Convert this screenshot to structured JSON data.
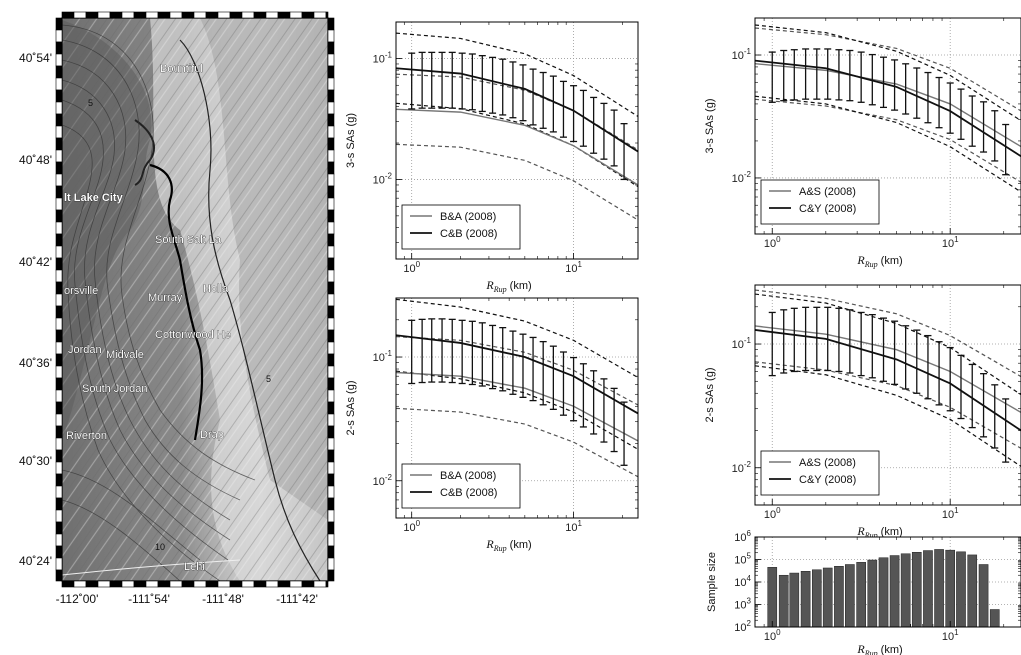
{
  "map": {
    "lat_labels": [
      "40˚54'",
      "40˚48'",
      "40˚42'",
      "40˚36'",
      "40˚30'",
      "40˚24'"
    ],
    "lon_labels": [
      "-112˚00'",
      "-111˚54'",
      "-111˚48'",
      "-111˚42'"
    ],
    "place_labels": [
      "Bountiful",
      "lt Lake City",
      "South Salt La",
      "orsville",
      "Murray",
      "Holla",
      "Cottonwood He",
      "Jordan",
      "Midvale",
      "South Jordan",
      "Riverton",
      "Drap",
      "Lehi"
    ],
    "contour_labels": [
      "5",
      "10",
      "5"
    ]
  },
  "chart_data": [
    {
      "type": "line",
      "id": "left-top",
      "ylabel": "3-s SAs (g)",
      "xlabel_main": "R",
      "xlabel_sub": "Rup",
      "xlabel_unit": " (km)",
      "xscale": "log",
      "yscale": "log",
      "xlim": [
        0.8,
        25
      ],
      "ylim": [
        0.0022,
        0.2
      ],
      "xticks": [
        {
          "main": "10",
          "sup": "0"
        },
        {
          "main": "10",
          "sup": "1"
        }
      ],
      "yticks": [
        {
          "main": "10",
          "sup": "-1"
        },
        {
          "main": "10",
          "sup": "-2"
        }
      ],
      "grid": true,
      "legend": "lower-left",
      "series": [
        {
          "name": "B&A (2008)",
          "x": [
            0.8,
            2,
            5,
            10,
            25
          ],
          "y": [
            0.038,
            0.036,
            0.028,
            0.019,
            0.009
          ]
        },
        {
          "name": "C&B (2008)",
          "x": [
            0.8,
            2,
            5,
            10,
            25
          ],
          "y": [
            0.083,
            0.075,
            0.056,
            0.037,
            0.017
          ]
        }
      ],
      "errorbars": {
        "x": [
          1.0,
          1.16,
          1.33,
          1.54,
          1.78,
          2.05,
          2.37,
          2.73,
          3.16,
          3.65,
          4.22,
          4.87,
          5.62,
          6.49,
          7.5,
          8.66,
          10.0,
          11.5,
          13.3,
          15.4,
          17.8,
          20.5
        ],
        "ymid": [
          0.065,
          0.066,
          0.066,
          0.066,
          0.066,
          0.065,
          0.064,
          0.062,
          0.06,
          0.058,
          0.055,
          0.052,
          0.048,
          0.045,
          0.042,
          0.038,
          0.035,
          0.032,
          0.028,
          0.025,
          0.022,
          0.017
        ],
        "yerr_factor": 1.7
      }
    },
    {
      "type": "line",
      "id": "left-bottom",
      "ylabel": "2-s SAs (g)",
      "xlabel_main": "R",
      "xlabel_sub": "Rup",
      "xlabel_unit": " (km)",
      "xscale": "log",
      "yscale": "log",
      "xlim": [
        0.8,
        25
      ],
      "ylim": [
        0.005,
        0.3
      ],
      "xticks": [
        {
          "main": "10",
          "sup": "0"
        },
        {
          "main": "10",
          "sup": "1"
        }
      ],
      "yticks": [
        {
          "main": "10",
          "sup": "-1"
        },
        {
          "main": "10",
          "sup": "-2"
        }
      ],
      "grid": true,
      "legend": "lower-left",
      "series": [
        {
          "name": "B&A (2008)",
          "x": [
            0.8,
            2,
            5,
            10,
            25
          ],
          "y": [
            0.075,
            0.07,
            0.056,
            0.04,
            0.021
          ]
        },
        {
          "name": "C&B (2008)",
          "x": [
            0.8,
            2,
            5,
            10,
            25
          ],
          "y": [
            0.15,
            0.13,
            0.1,
            0.07,
            0.035
          ]
        }
      ],
      "errorbars": {
        "x": [
          1.0,
          1.16,
          1.33,
          1.54,
          1.78,
          2.05,
          2.37,
          2.73,
          3.16,
          3.65,
          4.22,
          4.87,
          5.62,
          6.49,
          7.5,
          8.66,
          10.0,
          11.5,
          13.3,
          15.4,
          17.8,
          20.5
        ],
        "ymid": [
          0.11,
          0.112,
          0.113,
          0.113,
          0.112,
          0.11,
          0.108,
          0.105,
          0.1,
          0.096,
          0.09,
          0.085,
          0.08,
          0.074,
          0.068,
          0.061,
          0.055,
          0.049,
          0.043,
          0.037,
          0.031,
          0.024
        ],
        "yerr_factor": 1.8
      }
    },
    {
      "type": "line",
      "id": "right-top",
      "ylabel": "3-s SAs (g)",
      "xlabel_main": "R",
      "xlabel_sub": "Rup",
      "xlabel_unit": " (km)",
      "xscale": "log",
      "yscale": "log",
      "xlim": [
        0.8,
        25
      ],
      "ylim": [
        0.0035,
        0.2
      ],
      "xticks": [
        {
          "main": "10",
          "sup": "0"
        },
        {
          "main": "10",
          "sup": "1"
        }
      ],
      "yticks": [
        {
          "main": "10",
          "sup": "-1"
        },
        {
          "main": "10",
          "sup": "-2"
        }
      ],
      "grid": true,
      "legend": "lower-left",
      "series": [
        {
          "name": "A&S (2008)",
          "x": [
            0.8,
            2,
            5,
            10,
            25
          ],
          "y": [
            0.085,
            0.075,
            0.058,
            0.04,
            0.018
          ]
        },
        {
          "name": "C&Y (2008)",
          "x": [
            0.8,
            2,
            5,
            10,
            25
          ],
          "y": [
            0.09,
            0.078,
            0.055,
            0.035,
            0.015
          ]
        }
      ],
      "errorbars": {
        "x": [
          1.0,
          1.16,
          1.33,
          1.54,
          1.78,
          2.05,
          2.37,
          2.73,
          3.16,
          3.65,
          4.22,
          4.87,
          5.62,
          6.49,
          7.5,
          8.66,
          10.0,
          11.5,
          13.3,
          15.4,
          17.8,
          20.5
        ],
        "ymid": [
          0.066,
          0.068,
          0.069,
          0.07,
          0.07,
          0.07,
          0.069,
          0.068,
          0.066,
          0.063,
          0.06,
          0.057,
          0.053,
          0.049,
          0.045,
          0.041,
          0.037,
          0.033,
          0.029,
          0.026,
          0.022,
          0.017
        ],
        "yerr_factor": 1.6
      }
    },
    {
      "type": "line",
      "id": "right-middle",
      "ylabel": "2-s SAs (g)",
      "xlabel_main": "R",
      "xlabel_sub": "Rup",
      "xlabel_unit": " (km)",
      "xscale": "log",
      "yscale": "log",
      "xlim": [
        0.8,
        25
      ],
      "ylim": [
        0.005,
        0.3
      ],
      "xticks": [
        {
          "main": "10",
          "sup": "0"
        },
        {
          "main": "10",
          "sup": "1"
        }
      ],
      "yticks": [
        {
          "main": "10",
          "sup": "-1"
        },
        {
          "main": "10",
          "sup": "-2"
        }
      ],
      "grid": true,
      "legend": "lower-left",
      "series": [
        {
          "name": "A&S (2008)",
          "x": [
            0.8,
            2,
            5,
            10,
            25
          ],
          "y": [
            0.14,
            0.12,
            0.09,
            0.06,
            0.028
          ]
        },
        {
          "name": "C&Y (2008)",
          "x": [
            0.8,
            2,
            5,
            10,
            25
          ],
          "y": [
            0.13,
            0.11,
            0.075,
            0.048,
            0.02
          ]
        }
      ],
      "errorbars": {
        "x": [
          1.0,
          1.16,
          1.33,
          1.54,
          1.78,
          2.05,
          2.37,
          2.73,
          3.16,
          3.65,
          4.22,
          4.87,
          5.62,
          6.49,
          7.5,
          8.66,
          10.0,
          11.5,
          13.3,
          15.4,
          17.8,
          20.5
        ],
        "ymid": [
          0.1,
          0.105,
          0.108,
          0.11,
          0.11,
          0.11,
          0.108,
          0.105,
          0.1,
          0.096,
          0.09,
          0.085,
          0.078,
          0.072,
          0.065,
          0.058,
          0.052,
          0.045,
          0.038,
          0.032,
          0.026,
          0.02
        ],
        "yerr_factor": 1.8
      }
    },
    {
      "type": "bar",
      "id": "sample-size",
      "ylabel": "Sample size",
      "xlabel_main": "R",
      "xlabel_sub": "Rup",
      "xlabel_unit": " (km)",
      "xscale": "log",
      "yscale": "log",
      "xlim": [
        0.8,
        25
      ],
      "ylim": [
        100,
        1000000
      ],
      "xticks": [
        {
          "main": "10",
          "sup": "0"
        },
        {
          "main": "10",
          "sup": "1"
        }
      ],
      "yticks": [
        {
          "main": "10",
          "sup": "2"
        },
        {
          "main": "10",
          "sup": "3"
        },
        {
          "main": "10",
          "sup": "4"
        },
        {
          "main": "10",
          "sup": "5"
        },
        {
          "main": "10",
          "sup": "6"
        }
      ],
      "grid": true,
      "x": [
        1.0,
        1.16,
        1.33,
        1.54,
        1.78,
        2.05,
        2.37,
        2.73,
        3.16,
        3.65,
        4.22,
        4.87,
        5.62,
        6.49,
        7.5,
        8.66,
        10.0,
        11.5,
        13.3,
        15.4,
        17.8,
        20.5
      ],
      "values": [
        45000,
        20000,
        25000,
        30000,
        35000,
        42000,
        50000,
        60000,
        75000,
        95000,
        120000,
        150000,
        180000,
        210000,
        250000,
        280000,
        260000,
        220000,
        160000,
        60000,
        600,
        0
      ]
    }
  ]
}
